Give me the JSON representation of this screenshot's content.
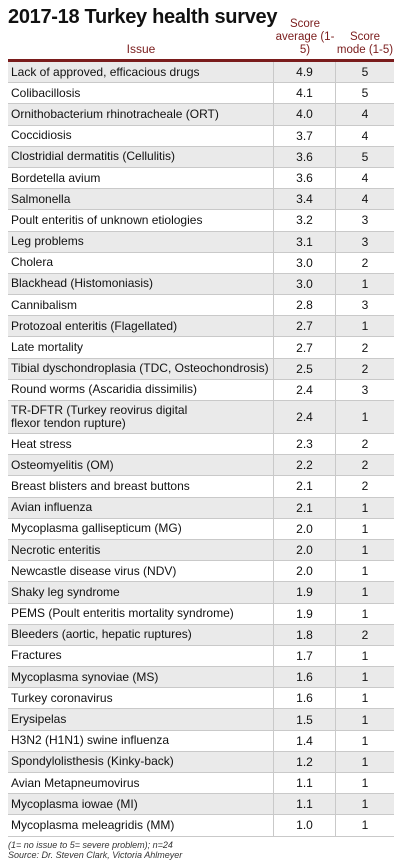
{
  "title": "2017-18 Turkey health survey",
  "headers": {
    "issue": "Issue",
    "avg": "Score\naverage (1-5)",
    "mode": "Score\nmode (1-5)"
  },
  "rows": [
    {
      "issue": "Lack of approved, efficacious drugs",
      "avg": "4.9",
      "mode": "5"
    },
    {
      "issue": "Colibacillosis",
      "avg": "4.1",
      "mode": "5"
    },
    {
      "issue": "Ornithobacterium rhinotracheale (ORT)",
      "avg": "4.0",
      "mode": "4"
    },
    {
      "issue": "Coccidiosis",
      "avg": "3.7",
      "mode": "4"
    },
    {
      "issue": "Clostridial dermatitis (Cellulitis)",
      "avg": "3.6",
      "mode": "5"
    },
    {
      "issue": "Bordetella avium",
      "avg": "3.6",
      "mode": "4"
    },
    {
      "issue": "Salmonella",
      "avg": "3.4",
      "mode": "4"
    },
    {
      "issue": "Poult enteritis of unknown etiologies",
      "avg": "3.2",
      "mode": "3"
    },
    {
      "issue": "Leg problems",
      "avg": "3.1",
      "mode": "3"
    },
    {
      "issue": "Cholera",
      "avg": "3.0",
      "mode": "2"
    },
    {
      "issue": "Blackhead (Histomoniasis)",
      "avg": "3.0",
      "mode": "1"
    },
    {
      "issue": "Cannibalism",
      "avg": "2.8",
      "mode": "3"
    },
    {
      "issue": "Protozoal enteritis (Flagellated)",
      "avg": "2.7",
      "mode": "1"
    },
    {
      "issue": "Late mortality",
      "avg": "2.7",
      "mode": "2"
    },
    {
      "issue": "Tibial dyschondroplasia (TDC, Osteochondrosis)",
      "avg": "2.5",
      "mode": "2"
    },
    {
      "issue": "Round worms (Ascaridia dissimilis)",
      "avg": "2.4",
      "mode": "3"
    },
    {
      "issue": "TR-DFTR (Turkey reovirus digital\nflexor tendon rupture)",
      "avg": "2.4",
      "mode": "1",
      "tall": true
    },
    {
      "issue": "Heat stress",
      "avg": "2.3",
      "mode": "2"
    },
    {
      "issue": "Osteomyelitis (OM)",
      "avg": "2.2",
      "mode": "2"
    },
    {
      "issue": "Breast blisters and breast buttons",
      "avg": "2.1",
      "mode": "2"
    },
    {
      "issue": "Avian influenza",
      "avg": "2.1",
      "mode": "1"
    },
    {
      "issue": "Mycoplasma gallisepticum (MG)",
      "avg": "2.0",
      "mode": "1"
    },
    {
      "issue": "Necrotic enteritis",
      "avg": "2.0",
      "mode": "1"
    },
    {
      "issue": "Newcastle disease virus (NDV)",
      "avg": "2.0",
      "mode": "1"
    },
    {
      "issue": "Shaky leg syndrome",
      "avg": "1.9",
      "mode": "1"
    },
    {
      "issue": "PEMS (Poult enteritis mortality syndrome)",
      "avg": "1.9",
      "mode": "1"
    },
    {
      "issue": "Bleeders (aortic, hepatic ruptures)",
      "avg": "1.8",
      "mode": "2"
    },
    {
      "issue": "Fractures",
      "avg": "1.7",
      "mode": "1"
    },
    {
      "issue": "Mycoplasma synoviae (MS)",
      "avg": "1.6",
      "mode": "1"
    },
    {
      "issue": "Turkey coronavirus",
      "avg": "1.6",
      "mode": "1"
    },
    {
      "issue": "Erysipelas",
      "avg": "1.5",
      "mode": "1"
    },
    {
      "issue": "H3N2 (H1N1) swine influenza",
      "avg": "1.4",
      "mode": "1"
    },
    {
      "issue": "Spondylolisthesis (Kinky-back)",
      "avg": "1.2",
      "mode": "1"
    },
    {
      "issue": "Avian Metapneumovirus",
      "avg": "1.1",
      "mode": "1"
    },
    {
      "issue": "Mycoplasma iowae (MI)",
      "avg": "1.1",
      "mode": "1"
    },
    {
      "issue": "Mycoplasma meleagridis (MM)",
      "avg": "1.0",
      "mode": "1"
    }
  ],
  "footnote": "(1= no issue to 5= severe problem); n=24",
  "source": "Source: Dr. Steven Clark, Victoria Ahlmeyer",
  "colors": {
    "accent": "#7a1c1c",
    "stripe": "#eaeaea"
  }
}
